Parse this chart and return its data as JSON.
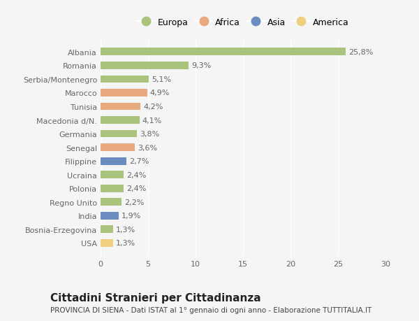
{
  "categories": [
    "USA",
    "Bosnia-Erzegovina",
    "India",
    "Regno Unito",
    "Polonia",
    "Ucraina",
    "Filippine",
    "Senegal",
    "Germania",
    "Macedonia d/N.",
    "Tunisia",
    "Marocco",
    "Serbia/Montenegro",
    "Romania",
    "Albania"
  ],
  "values": [
    1.3,
    1.3,
    1.9,
    2.2,
    2.4,
    2.4,
    2.7,
    3.6,
    3.8,
    4.1,
    4.2,
    4.9,
    5.1,
    9.3,
    25.8
  ],
  "labels": [
    "1,3%",
    "1,3%",
    "1,9%",
    "2,2%",
    "2,4%",
    "2,4%",
    "2,7%",
    "3,6%",
    "3,8%",
    "4,1%",
    "4,2%",
    "4,9%",
    "5,1%",
    "9,3%",
    "25,8%"
  ],
  "continents": [
    "America",
    "Europa",
    "Asia",
    "Europa",
    "Europa",
    "Europa",
    "Asia",
    "Africa",
    "Europa",
    "Europa",
    "Africa",
    "Africa",
    "Europa",
    "Europa",
    "Europa"
  ],
  "continent_colors": {
    "Europa": "#aac47e",
    "Africa": "#e8a97e",
    "Asia": "#6b8cbf",
    "America": "#f0d080"
  },
  "legend_order": [
    "Europa",
    "Africa",
    "Asia",
    "America"
  ],
  "title": "Cittadini Stranieri per Cittadinanza",
  "subtitle": "PROVINCIA DI SIENA - Dati ISTAT al 1° gennaio di ogni anno - Elaborazione TUTTITALIA.IT",
  "xlim": [
    0,
    30
  ],
  "xticks": [
    0,
    5,
    10,
    15,
    20,
    25,
    30
  ],
  "background_color": "#f5f5f5",
  "bar_height": 0.55,
  "title_fontsize": 11,
  "subtitle_fontsize": 7.5,
  "label_fontsize": 8,
  "tick_fontsize": 8,
  "legend_fontsize": 9
}
